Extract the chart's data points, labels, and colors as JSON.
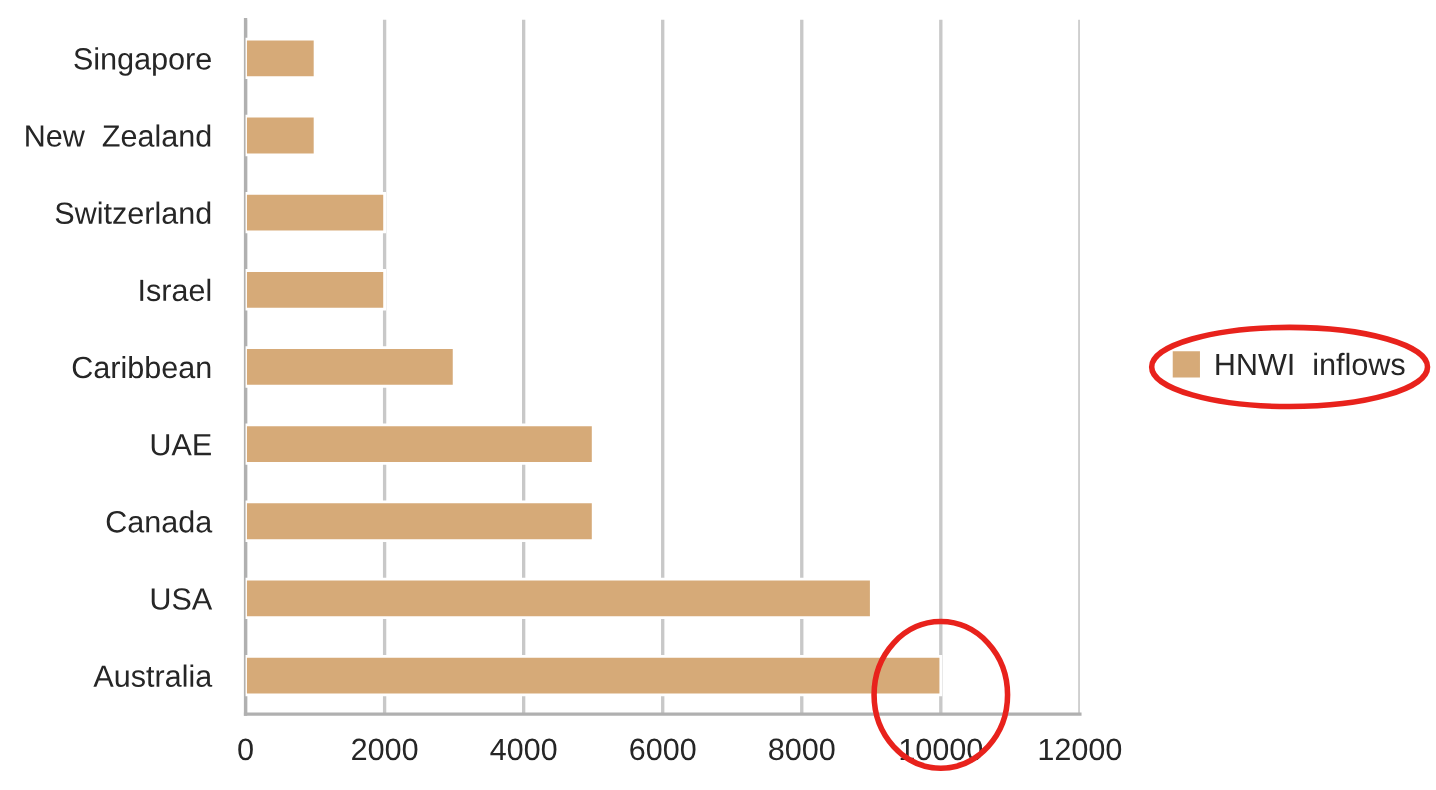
{
  "chart_data": {
    "type": "bar",
    "orientation": "horizontal",
    "categories": [
      "Singapore",
      "New  Zealand",
      "Switzerland",
      "Israel",
      "Caribbean",
      "UAE",
      "Canada",
      "USA",
      "Australia"
    ],
    "series": [
      {
        "name": "HNWI  inflows",
        "color": "#d6aa78",
        "values": [
          1000,
          1000,
          2000,
          2000,
          3000,
          5000,
          5000,
          9000,
          10000
        ]
      }
    ],
    "xlim": [
      0,
      12000
    ],
    "xticks": [
      0,
      2000,
      4000,
      6000,
      8000,
      10000,
      12000
    ],
    "grid": "x",
    "legend": "right"
  }
}
